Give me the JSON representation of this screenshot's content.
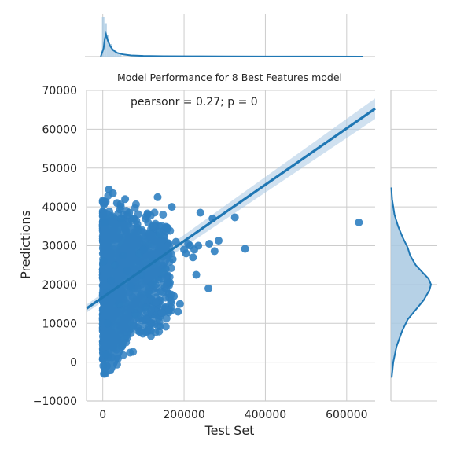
{
  "chart_data": {
    "type": "scatter",
    "title": "Model Performance for 8 Best Features model",
    "xlabel": "Test Set",
    "ylabel": "Predictions",
    "annotation": "pearsonr = 0.27; p = 0",
    "xlim": [
      -40000,
      670000
    ],
    "ylim": [
      -10000,
      70000
    ],
    "x_ticks": [
      0,
      200000,
      400000,
      600000
    ],
    "x_tick_labels": [
      "0",
      "200000",
      "400000",
      "600000"
    ],
    "y_ticks": [
      -10000,
      0,
      10000,
      20000,
      30000,
      40000,
      50000,
      60000,
      70000
    ],
    "y_tick_labels": [
      "−10000",
      "0",
      "10000",
      "20000",
      "30000",
      "40000",
      "50000",
      "60000",
      "70000"
    ],
    "grid": true,
    "colors": {
      "points": "#2f7fc1",
      "line": "#1f77b4",
      "band": "#aac8e4",
      "hist": "#a9c9e2"
    },
    "regression": {
      "x": [
        -40000,
        670000
      ],
      "y": [
        13800,
        65300
      ]
    },
    "series": [
      {
        "x": [
          630000,
          350000,
          325000,
          285000,
          275000,
          270000,
          262000,
          260000,
          240000,
          235000,
          230000,
          225000,
          222000,
          215000,
          210000,
          205000,
          200000,
          190000,
          185000,
          180000,
          175000,
          172000,
          170000,
          165000,
          160000,
          155000,
          150000,
          145000,
          140000,
          135000,
          130000,
          125000,
          120000,
          115000,
          110000,
          105000,
          100000,
          95000,
          90000,
          85000,
          80000,
          75000,
          70000,
          65000,
          60000,
          55000,
          50000,
          45000,
          40000,
          35000,
          30000,
          25000,
          20000,
          15000,
          10000,
          5000,
          2000,
          8000,
          3000,
          12000
        ],
        "y": [
          36000,
          29200,
          37300,
          31300,
          28600,
          37000,
          30500,
          19000,
          38500,
          30000,
          22500,
          29000,
          27000,
          30000,
          30500,
          28000,
          29000,
          15000,
          13000,
          31000,
          17000,
          26500,
          40000,
          20500,
          34500,
          24000,
          23000,
          21500,
          33000,
          42500,
          20000,
          26000,
          20000,
          17500,
          38000,
          14000,
          29000,
          22500,
          28000,
          35500,
          12500,
          37000,
          19500,
          38500,
          23500,
          42000,
          27500,
          37000,
          15000,
          41000,
          25000,
          43500,
          21000,
          44500,
          18000,
          36000,
          26000,
          2000,
          -3000,
          10000
        ]
      }
    ],
    "marginal_x": {
      "kde_x": [
        -5000,
        2000,
        5000,
        8000,
        12000,
        18000,
        25000,
        35000,
        50000,
        70000,
        100000,
        150000,
        220000,
        300000,
        400000,
        500000,
        640000
      ],
      "kde_density": [
        0.0,
        0.35,
        0.75,
        0.95,
        0.7,
        0.45,
        0.28,
        0.16,
        0.09,
        0.05,
        0.03,
        0.018,
        0.012,
        0.008,
        0.005,
        0.004,
        0.002
      ],
      "hist_bins": [
        -2000,
        4000,
        10000,
        16000,
        22000,
        28000,
        34000,
        40000,
        46000
      ],
      "hist_density": [
        1.0,
        0.85,
        0.55,
        0.32,
        0.2,
        0.14,
        0.1,
        0.07
      ]
    },
    "marginal_y": {
      "kde_y": [
        -4000,
        0,
        4000,
        8000,
        11000,
        13500,
        16000,
        18500,
        20000,
        21500,
        23000,
        25000,
        27500,
        29500,
        32000,
        35000,
        38000,
        42000,
        45000
      ],
      "kde_density": [
        0.02,
        0.06,
        0.14,
        0.28,
        0.42,
        0.62,
        0.82,
        0.96,
        1.0,
        0.94,
        0.8,
        0.62,
        0.48,
        0.42,
        0.3,
        0.18,
        0.09,
        0.03,
        0.01
      ]
    }
  }
}
